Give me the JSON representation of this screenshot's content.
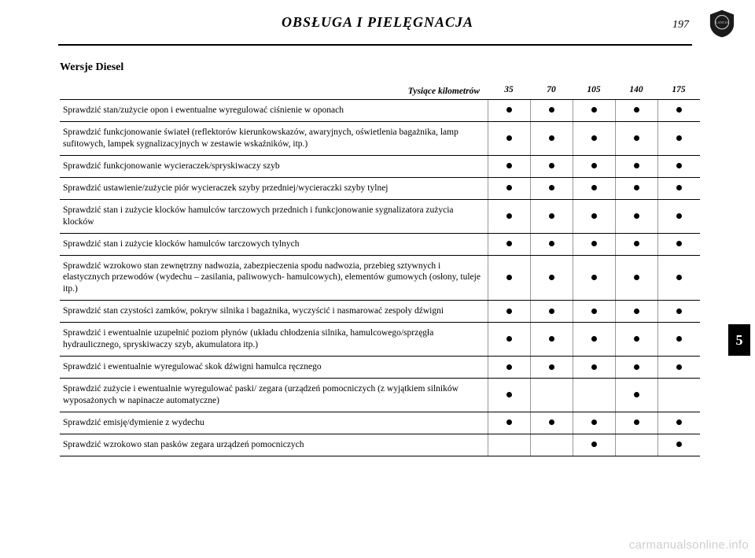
{
  "header": {
    "title": "OBSŁUGA I PIELĘGNACJA",
    "page_number": "197"
  },
  "subtitle": "Wersje Diesel",
  "chapter_tab": "5",
  "watermark": "carmanualsonline.info",
  "colors": {
    "text": "#000000",
    "bg": "#ffffff",
    "rule": "#000000",
    "col_rule": "#999999",
    "watermark": "#cfcfcf"
  },
  "table": {
    "header_label": "Tysiące kilometrów",
    "columns": [
      "35",
      "70",
      "105",
      "140",
      "175"
    ],
    "rows": [
      {
        "task": "Sprawdzić stan/zużycie opon i ewentualne wyregulować ciśnienie w oponach",
        "marks": [
          1,
          1,
          1,
          1,
          1
        ]
      },
      {
        "task": "Sprawdzić funkcjonowanie świateł (reflektorów kierunkowskazów, awaryjnych, oświetlenia bagażnika, lamp sufitowych, lampek sygnalizacyjnych w zestawie wskaźników, itp.)",
        "marks": [
          1,
          1,
          1,
          1,
          1
        ]
      },
      {
        "task": "Sprawdzić funkcjonowanie wycieraczek/spryskiwaczy szyb",
        "marks": [
          1,
          1,
          1,
          1,
          1
        ]
      },
      {
        "task": "Sprawdzić ustawienie/zużycie piór wycieraczek szyby przedniej/wycieraczki szyby tylnej",
        "marks": [
          1,
          1,
          1,
          1,
          1
        ]
      },
      {
        "task": "Sprawdzić stan i zużycie klocków hamulców tarczowych przednich i funkcjonowanie sygnalizatora zużycia klocków",
        "marks": [
          1,
          1,
          1,
          1,
          1
        ]
      },
      {
        "task": "Sprawdzić stan i zużycie klocków hamulców tarczowych tylnych",
        "marks": [
          1,
          1,
          1,
          1,
          1
        ]
      },
      {
        "task": "Sprawdzić wzrokowo stan zewnętrzny nadwozia, zabezpieczenia spodu nadwozia, przebieg sztywnych i elastycznych przewodów (wydechu – zasilania, paliwowych- hamulcowych), elementów gumowych (osłony, tuleje itp.)",
        "marks": [
          1,
          1,
          1,
          1,
          1
        ]
      },
      {
        "task": "Sprawdzić stan czystości zamków, pokryw silnika i bagażnika, wyczyścić i nasmarować zespoły dźwigni",
        "marks": [
          1,
          1,
          1,
          1,
          1
        ]
      },
      {
        "task": "Sprawdzić i ewentualnie uzupełnić poziom płynów (układu chłodzenia silnika, hamulcowego/sprzęgła hydraulicznego, spryskiwaczy szyb, akumulatora itp.)",
        "marks": [
          1,
          1,
          1,
          1,
          1
        ]
      },
      {
        "task": "Sprawdzić i ewentualnie wyregulować skok dźwigni hamulca ręcznego",
        "marks": [
          1,
          1,
          1,
          1,
          1
        ]
      },
      {
        "task": "Sprawdzić zużycie i ewentualnie wyregulować paski/ zegara (urządzeń pomocniczych (z wyjątkiem silników wyposażonych w napinacze automatyczne)",
        "marks": [
          1,
          0,
          0,
          1,
          0
        ]
      },
      {
        "task": "Sprawdzić emisję/dymienie z wydechu",
        "marks": [
          1,
          1,
          1,
          1,
          1
        ]
      },
      {
        "task": "Sprawdzić wzrokowo stan pasków zegara urządzeń pomocniczych",
        "marks": [
          0,
          0,
          1,
          0,
          1
        ]
      }
    ]
  }
}
